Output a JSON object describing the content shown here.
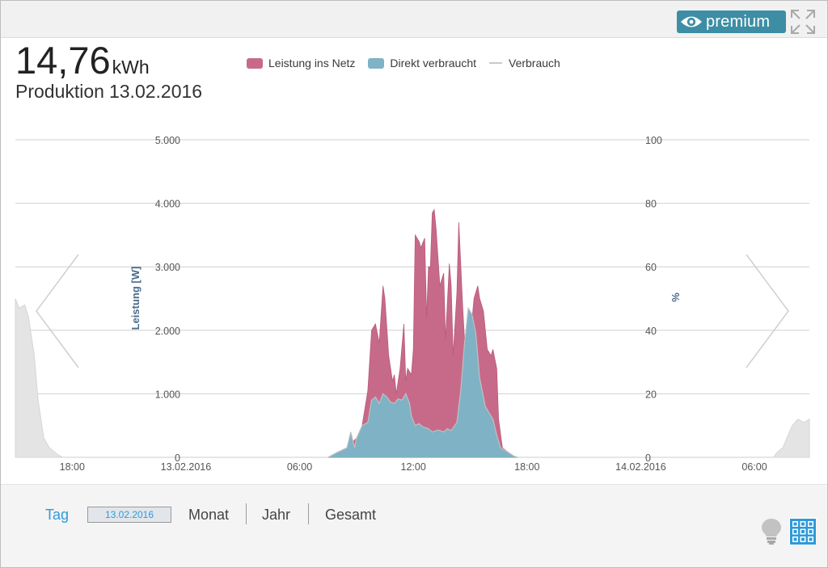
{
  "header": {
    "premium_label": "premium",
    "icons": {
      "premium": "eye-icon",
      "expand": "expand-icon"
    }
  },
  "summary": {
    "value": "14,76",
    "unit": "kWh",
    "label": "Produktion",
    "date": "13.02.2016"
  },
  "legend": [
    {
      "name": "Leistung ins Netz",
      "color": "#c76a89"
    },
    {
      "name": "Direkt verbraucht",
      "color": "#7fb2c5"
    },
    {
      "name": "Verbrauch",
      "color": "#c9c9c9"
    }
  ],
  "chart_data": {
    "type": "area",
    "title": "",
    "y_left_label": "Leistung [W]",
    "y_right_label": "%",
    "y_left_range": [
      0,
      5000
    ],
    "y_right_range": [
      0,
      100
    ],
    "y_left_ticks": [
      "0",
      "1.000",
      "2.000",
      "3.000",
      "4.000",
      "5.000"
    ],
    "y_left_tick_values": [
      0,
      1000,
      2000,
      3000,
      4000,
      5000
    ],
    "y_right_ticks": [
      "0",
      "20",
      "40",
      "60",
      "80",
      "100"
    ],
    "x_ticks": [
      "18:00",
      "13.02.2016",
      "06:00",
      "12:00",
      "18:00",
      "14.02.2016",
      "06:00"
    ],
    "x_tick_hours": [
      -6,
      0,
      6,
      12,
      18,
      24,
      30
    ],
    "x_range_hours": [
      -9,
      32.9
    ],
    "grid": true,
    "legend_position": "top",
    "series": [
      {
        "name": "Leistung ins Netz",
        "color": "#c76a89",
        "stack": "top",
        "points": [
          [
            7.5,
            0
          ],
          [
            8.0,
            80
          ],
          [
            8.5,
            150
          ],
          [
            9.0,
            300
          ],
          [
            9.3,
            500
          ],
          [
            9.6,
            1050
          ],
          [
            9.8,
            2000
          ],
          [
            10.0,
            2100
          ],
          [
            10.2,
            1800
          ],
          [
            10.4,
            2700
          ],
          [
            10.5,
            2500
          ],
          [
            10.7,
            1600
          ],
          [
            10.9,
            1200
          ],
          [
            11.0,
            1300
          ],
          [
            11.1,
            1000
          ],
          [
            11.3,
            1400
          ],
          [
            11.5,
            2100
          ],
          [
            11.6,
            1200
          ],
          [
            11.7,
            1400
          ],
          [
            11.9,
            1300
          ],
          [
            12.0,
            1700
          ],
          [
            12.1,
            3500
          ],
          [
            12.3,
            3400
          ],
          [
            12.4,
            3300
          ],
          [
            12.6,
            3450
          ],
          [
            12.7,
            2200
          ],
          [
            12.8,
            3000
          ],
          [
            12.9,
            3000
          ],
          [
            13.0,
            3850
          ],
          [
            13.1,
            3900
          ],
          [
            13.2,
            3600
          ],
          [
            13.4,
            2700
          ],
          [
            13.6,
            2900
          ],
          [
            13.7,
            1850
          ],
          [
            13.9,
            3050
          ],
          [
            14.0,
            2700
          ],
          [
            14.1,
            1600
          ],
          [
            14.3,
            2600
          ],
          [
            14.4,
            3700
          ],
          [
            14.6,
            2400
          ],
          [
            14.8,
            1300
          ],
          [
            14.9,
            1500
          ],
          [
            15.2,
            2500
          ],
          [
            15.4,
            2700
          ],
          [
            15.5,
            2500
          ],
          [
            15.7,
            2300
          ],
          [
            15.9,
            1700
          ],
          [
            16.1,
            1600
          ],
          [
            16.2,
            1700
          ],
          [
            16.4,
            1400
          ],
          [
            16.5,
            600
          ],
          [
            16.7,
            150
          ],
          [
            17.0,
            80
          ],
          [
            17.3,
            20
          ],
          [
            17.5,
            0
          ]
        ]
      },
      {
        "name": "Direkt verbraucht",
        "color": "#7fb2c5",
        "stack": "bottom",
        "points": [
          [
            7.5,
            0
          ],
          [
            8.0,
            80
          ],
          [
            8.5,
            150
          ],
          [
            8.7,
            400
          ],
          [
            8.9,
            150
          ],
          [
            9.0,
            300
          ],
          [
            9.3,
            500
          ],
          [
            9.6,
            550
          ],
          [
            9.8,
            900
          ],
          [
            10.0,
            950
          ],
          [
            10.2,
            850
          ],
          [
            10.4,
            1000
          ],
          [
            10.6,
            950
          ],
          [
            10.8,
            870
          ],
          [
            11.0,
            850
          ],
          [
            11.2,
            920
          ],
          [
            11.4,
            900
          ],
          [
            11.6,
            1000
          ],
          [
            11.8,
            850
          ],
          [
            11.9,
            650
          ],
          [
            12.1,
            500
          ],
          [
            12.3,
            530
          ],
          [
            12.5,
            480
          ],
          [
            12.8,
            450
          ],
          [
            13.0,
            400
          ],
          [
            13.3,
            430
          ],
          [
            13.6,
            400
          ],
          [
            13.8,
            450
          ],
          [
            14.0,
            420
          ],
          [
            14.3,
            550
          ],
          [
            14.5,
            1050
          ],
          [
            14.7,
            1800
          ],
          [
            14.9,
            2350
          ],
          [
            15.1,
            2250
          ],
          [
            15.3,
            1950
          ],
          [
            15.5,
            1250
          ],
          [
            15.8,
            800
          ],
          [
            16.0,
            700
          ],
          [
            16.2,
            600
          ],
          [
            16.4,
            350
          ],
          [
            16.6,
            150
          ],
          [
            17.0,
            80
          ],
          [
            17.3,
            20
          ],
          [
            17.5,
            0
          ]
        ]
      },
      {
        "name": "Verbrauch",
        "color": "#e4e4e4",
        "stack": "none",
        "segments": [
          [
            [
              -9,
              2500
            ],
            [
              -8.8,
              2350
            ],
            [
              -8.5,
              2400
            ],
            [
              -8.3,
              2200
            ],
            [
              -8.0,
              1600
            ],
            [
              -7.8,
              900
            ],
            [
              -7.5,
              300
            ],
            [
              -7.2,
              150
            ],
            [
              -6.8,
              50
            ],
            [
              -6.5,
              0
            ]
          ],
          [
            [
              31.0,
              0
            ],
            [
              31.2,
              80
            ],
            [
              31.5,
              150
            ],
            [
              31.7,
              300
            ],
            [
              32.0,
              500
            ],
            [
              32.3,
              600
            ],
            [
              32.6,
              550
            ],
            [
              32.9,
              600
            ]
          ]
        ]
      }
    ]
  },
  "nav": {
    "prev_icon": "chevron-left-icon",
    "next_icon": "chevron-right-icon"
  },
  "footer": {
    "tabs": [
      {
        "id": "tag",
        "label": "Tag",
        "active": true
      },
      {
        "id": "monat",
        "label": "Monat",
        "active": false
      },
      {
        "id": "jahr",
        "label": "Jahr",
        "active": false
      },
      {
        "id": "gesamt",
        "label": "Gesamt",
        "active": false
      }
    ],
    "date_value": "13.02.2016",
    "icons": {
      "tips": "lightbulb-icon",
      "widgets": "grid-icon"
    }
  }
}
